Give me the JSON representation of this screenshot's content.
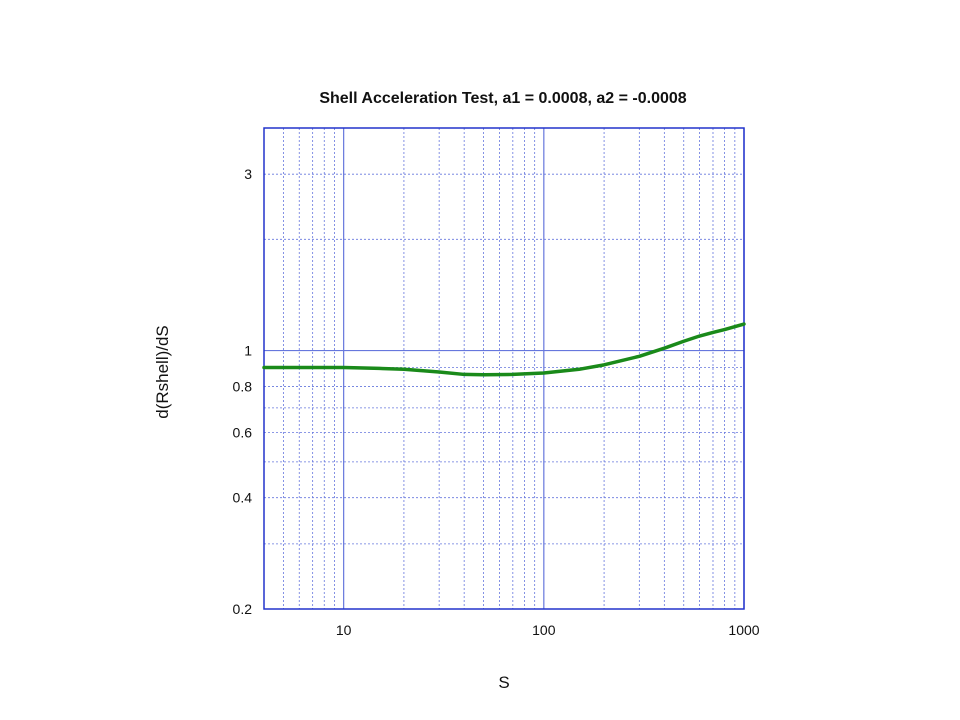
{
  "chart_data": {
    "type": "line",
    "title": "Shell Acceleration Test, a1 = 0.0008, a2 = -0.0008",
    "xlabel": "S",
    "ylabel": "d(Rshell)/dS",
    "xscale": "log",
    "yscale": "log",
    "xlim": [
      4,
      1000
    ],
    "ylim": [
      0.2,
      4
    ],
    "x_tick_labels": [
      {
        "value": 10,
        "label": "10"
      },
      {
        "value": 100,
        "label": "100"
      },
      {
        "value": 1000,
        "label": "1000"
      }
    ],
    "y_tick_labels": [
      {
        "value": 0.2,
        "label": "0.2"
      },
      {
        "value": 0.4,
        "label": "0.4"
      },
      {
        "value": 0.6,
        "label": "0.6"
      },
      {
        "value": 0.8,
        "label": "0.8"
      },
      {
        "value": 1,
        "label": "1"
      },
      {
        "value": 3,
        "label": "3"
      }
    ],
    "grid": true,
    "colors": {
      "frame": "#2233cc",
      "grid": "#6677dd",
      "series": "#1a8a1a"
    },
    "series": [
      {
        "x": [
          4,
          6,
          8,
          10,
          15,
          20,
          30,
          40,
          50,
          70,
          100,
          150,
          200,
          300,
          400,
          500,
          600,
          700,
          800,
          1000
        ],
        "y": [
          0.9,
          0.9,
          0.9,
          0.9,
          0.895,
          0.89,
          0.875,
          0.862,
          0.86,
          0.862,
          0.87,
          0.89,
          0.915,
          0.965,
          1.015,
          1.06,
          1.095,
          1.12,
          1.14,
          1.18
        ]
      }
    ]
  }
}
